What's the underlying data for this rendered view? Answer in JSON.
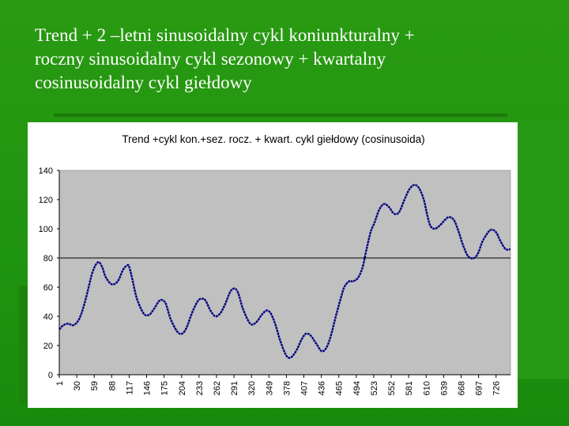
{
  "slide": {
    "title_lines": [
      "Trend + 2 –letni sinusoidalny cykl koniunkturalny +",
      "roczny sinusoidalny cykl sezonowy + kwartalny",
      "cosinusoidalny cykl giełdowy"
    ]
  },
  "colors": {
    "background": "#1f9410",
    "plot_area": "#c0c0c0",
    "series_line": "#000080",
    "reference_line": "#000000"
  },
  "chart_data": {
    "type": "line",
    "title": "Trend +cykl kon.+sez. rocz. + kwart.  cykl giełdowy (cosinusoida)",
    "xlabel": "",
    "ylabel": "",
    "ylim": [
      0,
      140
    ],
    "yticks": [
      0,
      20,
      40,
      60,
      80,
      100,
      120,
      140
    ],
    "xlim": [
      1,
      750
    ],
    "xticks": [
      1,
      30,
      59,
      88,
      117,
      146,
      175,
      204,
      233,
      262,
      291,
      320,
      349,
      378,
      407,
      436,
      465,
      494,
      523,
      552,
      581,
      610,
      639,
      668,
      697,
      726
    ],
    "grid": false,
    "legend": "none",
    "reference_line_y": 80,
    "series": [
      {
        "x": [
          1,
          8,
          16,
          25,
          35,
          45,
          56,
          65,
          72,
          78,
          88,
          98,
          107,
          114,
          117,
          122,
          130,
          141,
          150,
          158,
          168,
          176,
          180,
          186,
          196,
          204,
          212,
          222,
          232,
          240,
          245,
          252,
          260,
          268,
          276,
          285,
          292,
          298,
          306,
          318,
          328,
          337,
          345,
          352,
          360,
          368,
          378,
          386,
          395,
          403,
          410,
          418,
          428,
          437,
          445,
          452,
          460,
          468,
          474,
          482,
          488,
          496,
          504,
          511,
          518,
          524,
          532,
          540,
          548,
          555,
          560,
          566,
          574,
          582,
          590,
          598,
          606,
          612,
          617,
          624,
          632,
          641,
          648,
          656,
          664,
          671,
          680,
          690,
          697,
          703,
          710,
          716,
          722,
          727,
          734,
          742,
          750
        ],
        "y": [
          31,
          34,
          35,
          34,
          39,
          52,
          70,
          77,
          74,
          67,
          62,
          64,
          72,
          75,
          74,
          66,
          52,
          42,
          41,
          45,
          51,
          50,
          46,
          38,
          30,
          28,
          32,
          43,
          51,
          52,
          50,
          44,
          40,
          42,
          48,
          57,
          59,
          56,
          45,
          35,
          36,
          41,
          44,
          42,
          34,
          23,
          13,
          12,
          17,
          24,
          28,
          27,
          21,
          16,
          19,
          27,
          40,
          52,
          60,
          64,
          64,
          66,
          73,
          86,
          98,
          104,
          113,
          117,
          115,
          111,
          110,
          112,
          120,
          127,
          130,
          128,
          120,
          109,
          102,
          100,
          102,
          106,
          108,
          106,
          98,
          89,
          81,
          80,
          84,
          91,
          96,
          99,
          99,
          97,
          91,
          86,
          86
        ]
      }
    ]
  }
}
